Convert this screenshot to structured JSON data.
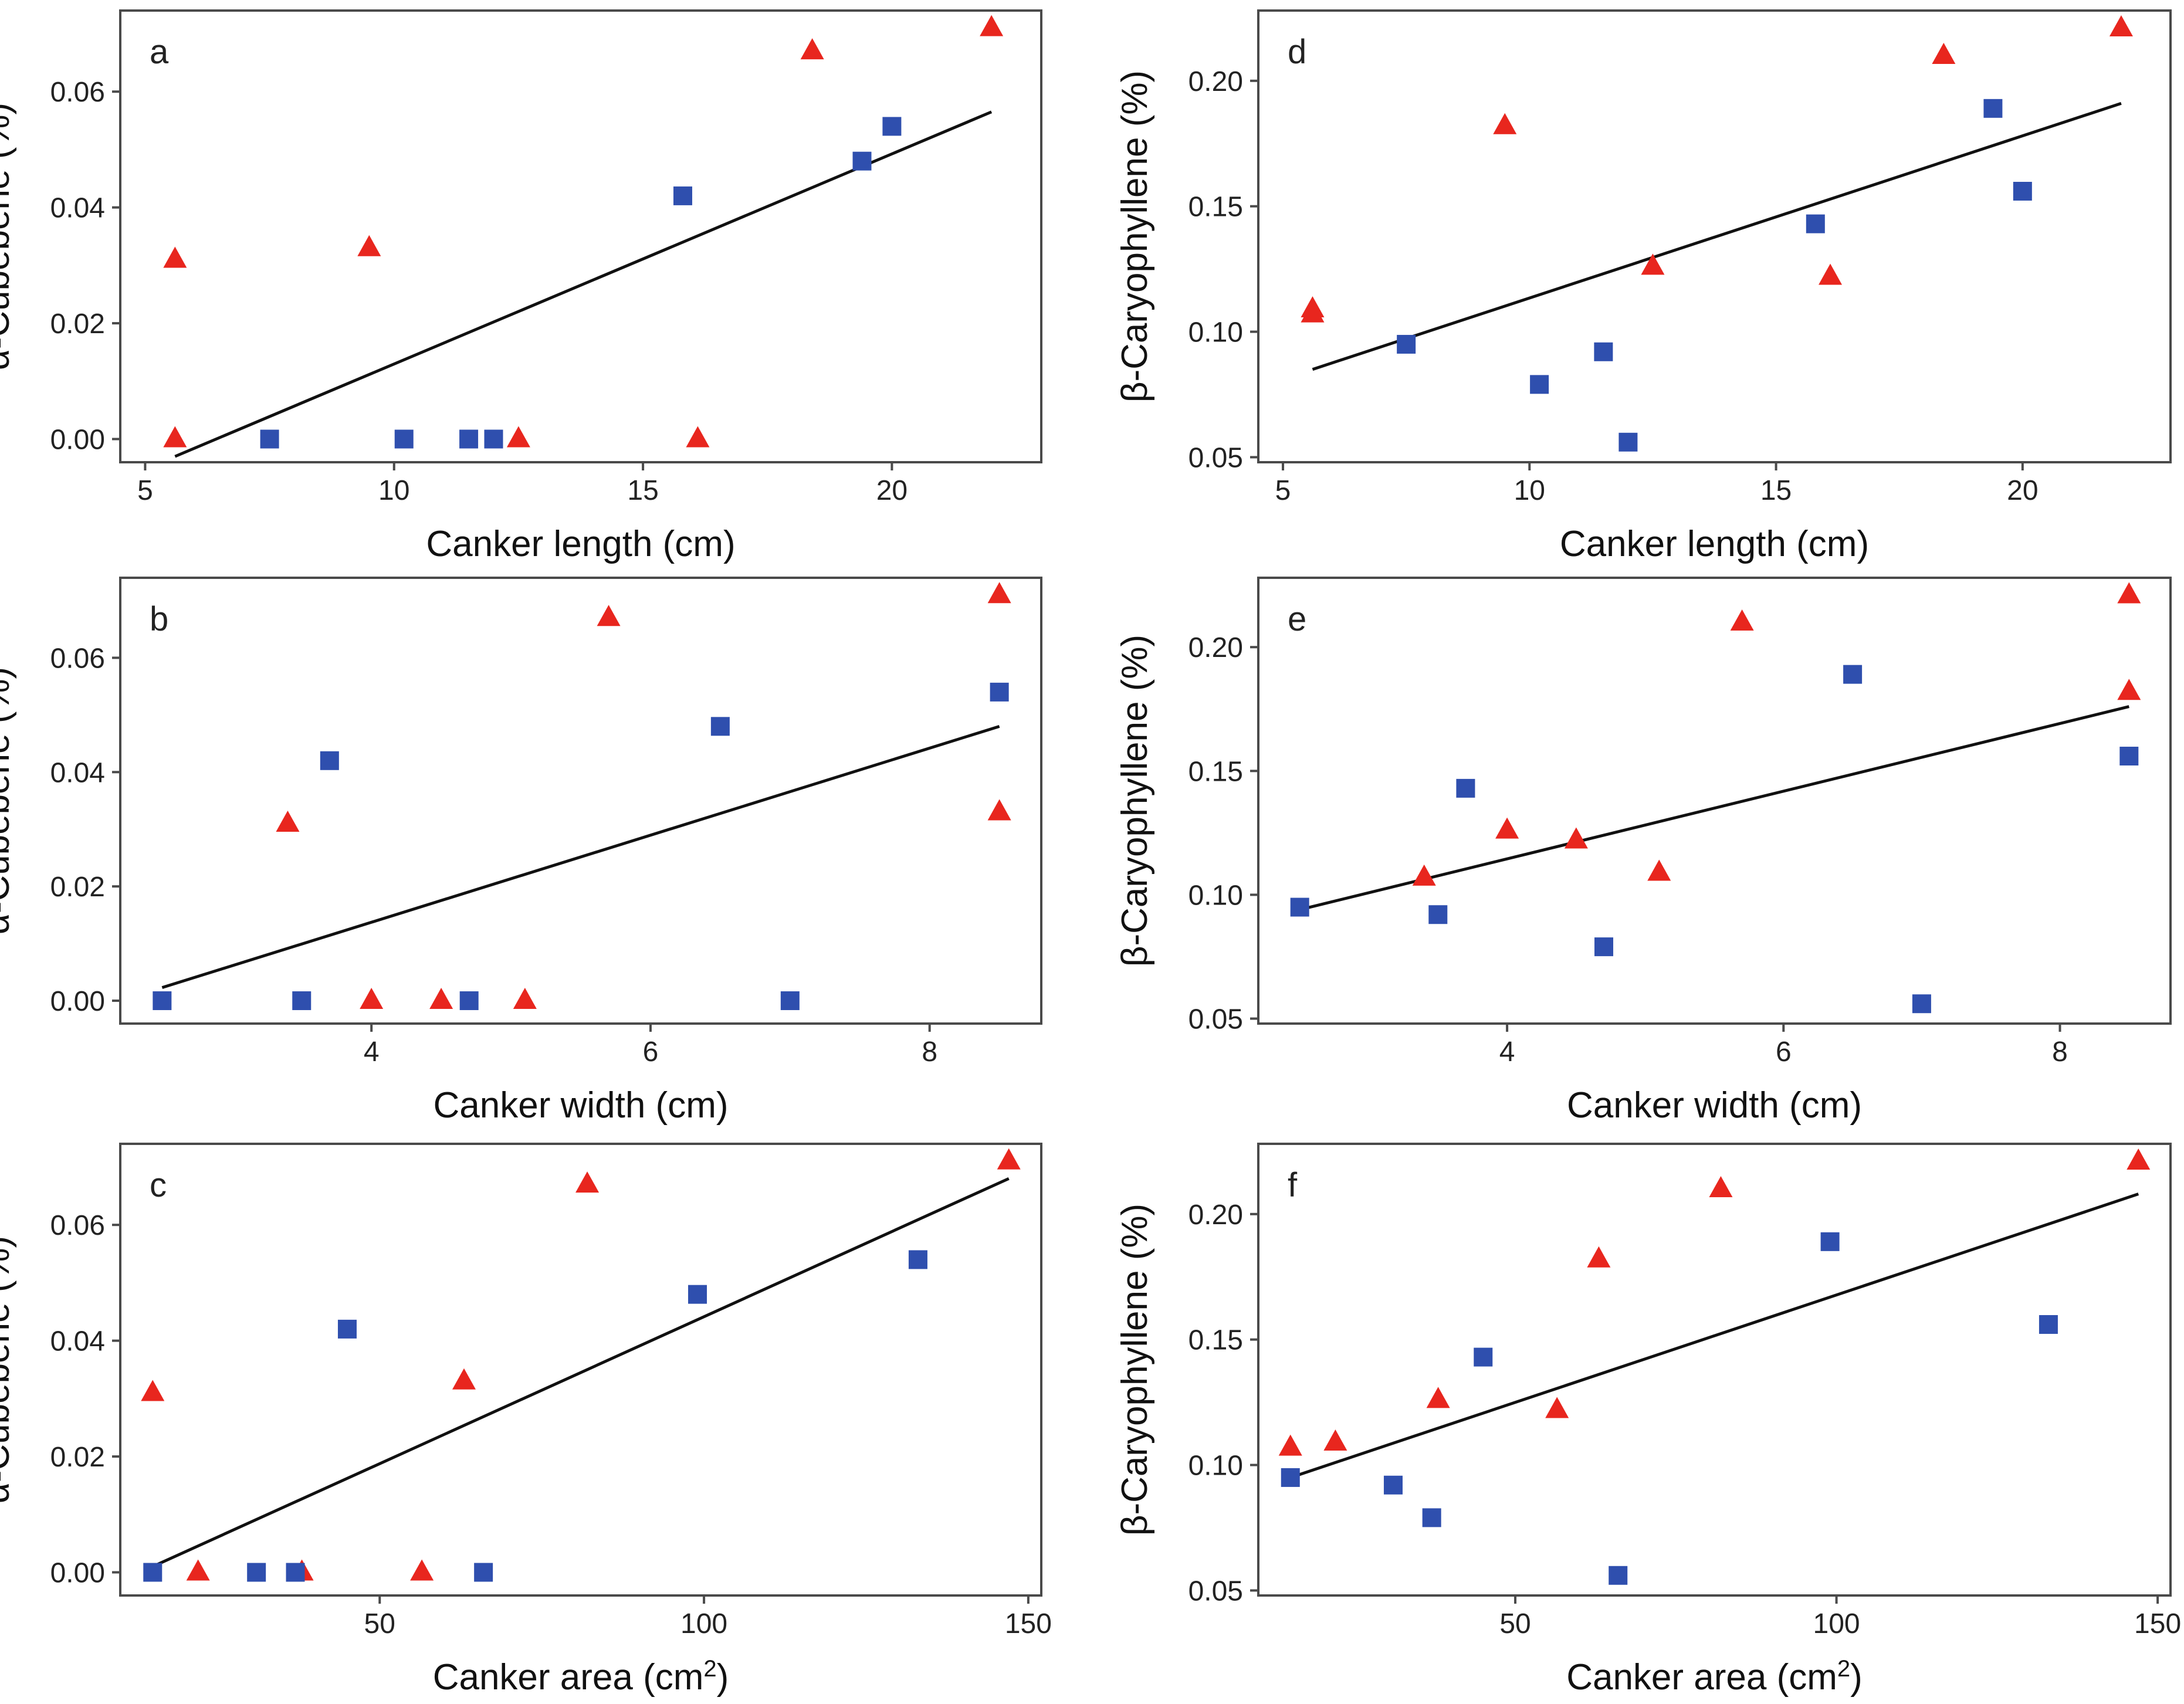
{
  "figure": {
    "colors": {
      "series_a": "#e8261e",
      "series_b": "#2f4fae",
      "fit": "#111111",
      "frame": "#4a4a4a"
    },
    "legend": "none"
  },
  "chart_data": [
    {
      "panel": "a",
      "type": "scatter",
      "xlabel": "Canker length (cm)",
      "ylabel": "α-Cubebene (%)",
      "xlim": [
        4.5,
        23
      ],
      "ylim": [
        -0.004,
        0.074
      ],
      "xticks": [
        5,
        10,
        15,
        20
      ],
      "yticks": [
        0.0,
        0.02,
        0.04,
        0.06
      ],
      "ydecimals": 2,
      "series": [
        {
          "name": "triangles",
          "marker": "triangle",
          "color": "#e8261e",
          "points": [
            [
              5.6,
              0.031
            ],
            [
              5.6,
              0.0
            ],
            [
              9.5,
              0.033
            ],
            [
              12.5,
              0.0
            ],
            [
              16.1,
              0.0
            ],
            [
              18.4,
              0.067
            ],
            [
              22.0,
              0.071
            ]
          ]
        },
        {
          "name": "squares",
          "marker": "square",
          "color": "#2f4fae",
          "points": [
            [
              7.5,
              0.0
            ],
            [
              10.2,
              0.0
            ],
            [
              11.5,
              0.0
            ],
            [
              12.0,
              0.0
            ],
            [
              15.8,
              0.042
            ],
            [
              19.4,
              0.048
            ],
            [
              20.0,
              0.054
            ]
          ]
        }
      ],
      "fit": {
        "x1": 5.6,
        "y1": -0.003,
        "x2": 22.0,
        "y2": 0.0565
      }
    },
    {
      "panel": "d",
      "type": "scatter",
      "xlabel": "Canker length (cm)",
      "ylabel": "β-Caryophyllene (%)",
      "xlim": [
        4.5,
        23
      ],
      "ylim": [
        0.048,
        0.228
      ],
      "xticks": [
        5,
        10,
        15,
        20
      ],
      "yticks": [
        0.05,
        0.1,
        0.15,
        0.2
      ],
      "ydecimals": 2,
      "series": [
        {
          "name": "triangles",
          "marker": "triangle",
          "color": "#e8261e",
          "points": [
            [
              5.6,
              0.109
            ],
            [
              5.6,
              0.107
            ],
            [
              9.5,
              0.182
            ],
            [
              12.5,
              0.126
            ],
            [
              16.1,
              0.122
            ],
            [
              18.4,
              0.21
            ],
            [
              22.0,
              0.221
            ]
          ]
        },
        {
          "name": "squares",
          "marker": "square",
          "color": "#2f4fae",
          "points": [
            [
              7.5,
              0.095
            ],
            [
              10.2,
              0.079
            ],
            [
              11.5,
              0.092
            ],
            [
              12.0,
              0.056
            ],
            [
              15.8,
              0.143
            ],
            [
              19.4,
              0.189
            ],
            [
              20.0,
              0.156
            ]
          ]
        }
      ],
      "fit": {
        "x1": 5.6,
        "y1": 0.085,
        "x2": 22.0,
        "y2": 0.191
      }
    },
    {
      "panel": "b",
      "type": "scatter",
      "xlabel": "Canker width (cm)",
      "ylabel": "α-Cubebene (%)",
      "xlim": [
        2.2,
        8.8
      ],
      "ylim": [
        -0.004,
        0.074
      ],
      "xticks": [
        4,
        6,
        8
      ],
      "yticks": [
        0.0,
        0.02,
        0.04,
        0.06
      ],
      "ydecimals": 2,
      "series": [
        {
          "name": "triangles",
          "marker": "triangle",
          "color": "#e8261e",
          "points": [
            [
              3.4,
              0.031
            ],
            [
              4.0,
              0.0
            ],
            [
              4.5,
              0.0
            ],
            [
              5.1,
              0.0
            ],
            [
              5.7,
              0.067
            ],
            [
              8.5,
              0.071
            ],
            [
              8.5,
              0.033
            ]
          ]
        },
        {
          "name": "squares",
          "marker": "square",
          "color": "#2f4fae",
          "points": [
            [
              2.5,
              0.0
            ],
            [
              3.5,
              0.0
            ],
            [
              3.7,
              0.042
            ],
            [
              4.7,
              0.0
            ],
            [
              6.5,
              0.048
            ],
            [
              7.0,
              0.0
            ],
            [
              8.5,
              0.054
            ]
          ]
        }
      ],
      "fit": {
        "x1": 2.5,
        "y1": 0.0023,
        "x2": 8.5,
        "y2": 0.048
      }
    },
    {
      "panel": "e",
      "type": "scatter",
      "xlabel": "Canker width (cm)",
      "ylabel": "β-Caryophyllene (%)",
      "xlim": [
        2.2,
        8.8
      ],
      "ylim": [
        0.048,
        0.228
      ],
      "xticks": [
        4,
        6,
        8
      ],
      "yticks": [
        0.05,
        0.1,
        0.15,
        0.2
      ],
      "ydecimals": 2,
      "series": [
        {
          "name": "triangles",
          "marker": "triangle",
          "color": "#e8261e",
          "points": [
            [
              3.4,
              0.107
            ],
            [
              4.0,
              0.126
            ],
            [
              4.5,
              0.122
            ],
            [
              5.1,
              0.109
            ],
            [
              5.7,
              0.21
            ],
            [
              8.5,
              0.221
            ],
            [
              8.5,
              0.182
            ]
          ]
        },
        {
          "name": "squares",
          "marker": "square",
          "color": "#2f4fae",
          "points": [
            [
              2.5,
              0.095
            ],
            [
              3.5,
              0.092
            ],
            [
              3.7,
              0.143
            ],
            [
              4.7,
              0.079
            ],
            [
              6.5,
              0.189
            ],
            [
              7.0,
              0.056
            ],
            [
              8.5,
              0.156
            ]
          ]
        }
      ],
      "fit": {
        "x1": 2.5,
        "y1": 0.094,
        "x2": 8.5,
        "y2": 0.176
      }
    },
    {
      "panel": "c",
      "type": "scatter",
      "xlabel": "Canker area (cm",
      "xlabel_sup": "2",
      "xlabel_end": ")",
      "ylabel": "α-Cubebene (%)",
      "xlim": [
        10,
        152
      ],
      "ylim": [
        -0.004,
        0.074
      ],
      "xticks": [
        50,
        100,
        150
      ],
      "yticks": [
        0.0,
        0.02,
        0.04,
        0.06
      ],
      "ydecimals": 2,
      "series": [
        {
          "name": "triangles",
          "marker": "triangle",
          "color": "#e8261e",
          "points": [
            [
              15,
              0.031
            ],
            [
              22,
              0.0
            ],
            [
              38,
              0.0
            ],
            [
              56.5,
              0.0
            ],
            [
              63,
              0.033
            ],
            [
              82,
              0.067
            ],
            [
              147,
              0.071
            ]
          ]
        },
        {
          "name": "squares",
          "marker": "square",
          "color": "#2f4fae",
          "points": [
            [
              15,
              0.0
            ],
            [
              31,
              0.0
            ],
            [
              37,
              0.0
            ],
            [
              45,
              0.042
            ],
            [
              66,
              0.0
            ],
            [
              99,
              0.048
            ],
            [
              133,
              0.054
            ]
          ]
        }
      ],
      "fit": {
        "x1": 15,
        "y1": 0.001,
        "x2": 147,
        "y2": 0.068
      }
    },
    {
      "panel": "f",
      "type": "scatter",
      "xlabel": "Canker area (cm",
      "xlabel_sup": "2",
      "xlabel_end": ")",
      "ylabel": "β-Caryophyllene (%)",
      "xlim": [
        10,
        152
      ],
      "ylim": [
        0.048,
        0.228
      ],
      "xticks": [
        50,
        100,
        150
      ],
      "yticks": [
        0.05,
        0.1,
        0.15,
        0.2
      ],
      "ydecimals": 2,
      "series": [
        {
          "name": "triangles",
          "marker": "triangle",
          "color": "#e8261e",
          "points": [
            [
              15,
              0.107
            ],
            [
              22,
              0.109
            ],
            [
              38,
              0.126
            ],
            [
              56.5,
              0.122
            ],
            [
              63,
              0.182
            ],
            [
              82,
              0.21
            ],
            [
              147,
              0.221
            ]
          ]
        },
        {
          "name": "squares",
          "marker": "square",
          "color": "#2f4fae",
          "points": [
            [
              15,
              0.095
            ],
            [
              31,
              0.092
            ],
            [
              37,
              0.079
            ],
            [
              45,
              0.143
            ],
            [
              66,
              0.056
            ],
            [
              99,
              0.189
            ],
            [
              133,
              0.156
            ]
          ]
        }
      ],
      "fit": {
        "x1": 15,
        "y1": 0.095,
        "x2": 147,
        "y2": 0.208
      }
    }
  ]
}
